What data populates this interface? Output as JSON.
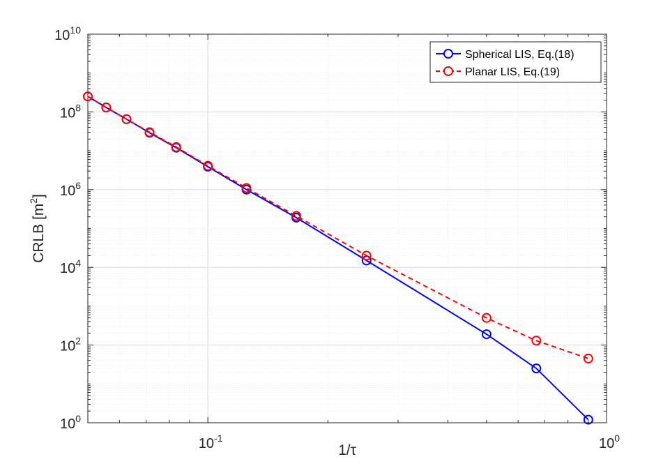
{
  "chart_data": {
    "type": "line",
    "title": "",
    "xlabel": "1/τ",
    "ylabel": "CRLB [m",
    "ylabel_sup": "2",
    "ylabel_close": "]",
    "x_scale": "log",
    "y_scale": "log",
    "xlim": [
      0.05,
      1.0
    ],
    "ylim": [
      1,
      10000000000
    ],
    "grid": true,
    "legend_position": "top-right",
    "x_ticks": [
      {
        "value": 0.1,
        "base": "10",
        "exp": "-1"
      },
      {
        "value": 1,
        "base": "10",
        "exp": "0"
      }
    ],
    "y_ticks": [
      {
        "value": 1,
        "base": "10",
        "exp": "0"
      },
      {
        "value": 100,
        "base": "10",
        "exp": "2"
      },
      {
        "value": 10000,
        "base": "10",
        "exp": "4"
      },
      {
        "value": 1000000,
        "base": "10",
        "exp": "6"
      },
      {
        "value": 100000000,
        "base": "10",
        "exp": "8"
      },
      {
        "value": 10000000000,
        "base": "10",
        "exp": "10"
      }
    ],
    "series": [
      {
        "name": "Spherical LIS, Eq.(18)",
        "color": "#0000ff",
        "line_style": "solid",
        "marker": "circle",
        "x": [
          0.05,
          0.0556,
          0.0625,
          0.0714,
          0.0833,
          0.1,
          0.125,
          0.1667,
          0.25,
          0.5,
          0.6667,
          0.9
        ],
        "y": [
          250000000,
          130000000,
          65000000,
          29000000,
          12000000,
          3900000,
          1000000,
          190000,
          15000,
          190,
          25,
          1.2
        ]
      },
      {
        "name": "Planar LIS, Eq.(19)",
        "color": "#ff0000",
        "line_style": "dashed",
        "marker": "circle",
        "x": [
          0.05,
          0.0556,
          0.0625,
          0.0714,
          0.0833,
          0.1,
          0.125,
          0.1667,
          0.25,
          0.5,
          0.6667,
          0.9
        ],
        "y": [
          250000000,
          130000000,
          65000000,
          30000000,
          12500000,
          4100000,
          1100000,
          210000,
          20000,
          500,
          130,
          45
        ]
      }
    ]
  }
}
